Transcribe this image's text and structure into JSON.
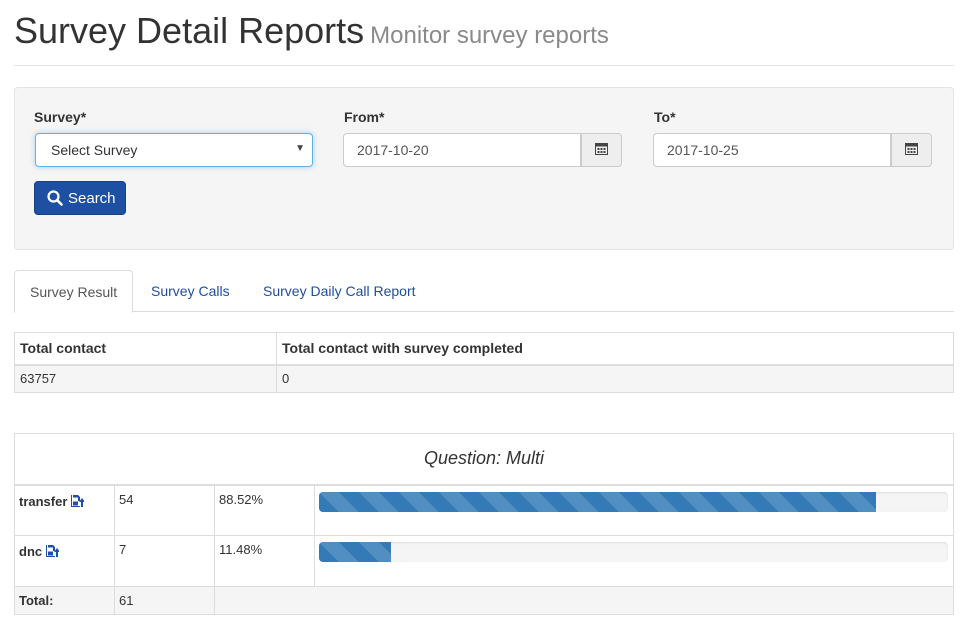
{
  "header": {
    "title": "Survey Detail Reports",
    "subtitle": "Monitor survey reports"
  },
  "filters": {
    "survey_label": "Survey*",
    "survey_value": "Select Survey",
    "from_label": "From*",
    "from_value": "2017-10-20",
    "to_label": "To*",
    "to_value": "2017-10-25",
    "search_label": "Search"
  },
  "tabs": [
    {
      "label": "Survey Result",
      "active": true
    },
    {
      "label": "Survey Calls",
      "active": false
    },
    {
      "label": "Survey Daily Call Report",
      "active": false
    }
  ],
  "summary": {
    "headers": [
      "Total contact",
      "Total contact with survey completed"
    ],
    "row": [
      "63757",
      "0"
    ]
  },
  "question": {
    "title": "Question: Multi",
    "rows": [
      {
        "label": "transfer",
        "count": "54",
        "percent": "88.52%",
        "fraction": 0.8852
      },
      {
        "label": "dnc",
        "count": "7",
        "percent": "11.48%",
        "fraction": 0.1148
      }
    ],
    "total_label": "Total:",
    "total_value": "61"
  },
  "colors": {
    "primary_button": "#1d4fa3",
    "progress_bar": "#337ab7",
    "tab_link": "#1f4e9c"
  },
  "icons": {
    "calendar": "calendar-icon",
    "search": "search-icon",
    "export": "export-icon",
    "dropdown": "dropdown-arrow-icon"
  }
}
